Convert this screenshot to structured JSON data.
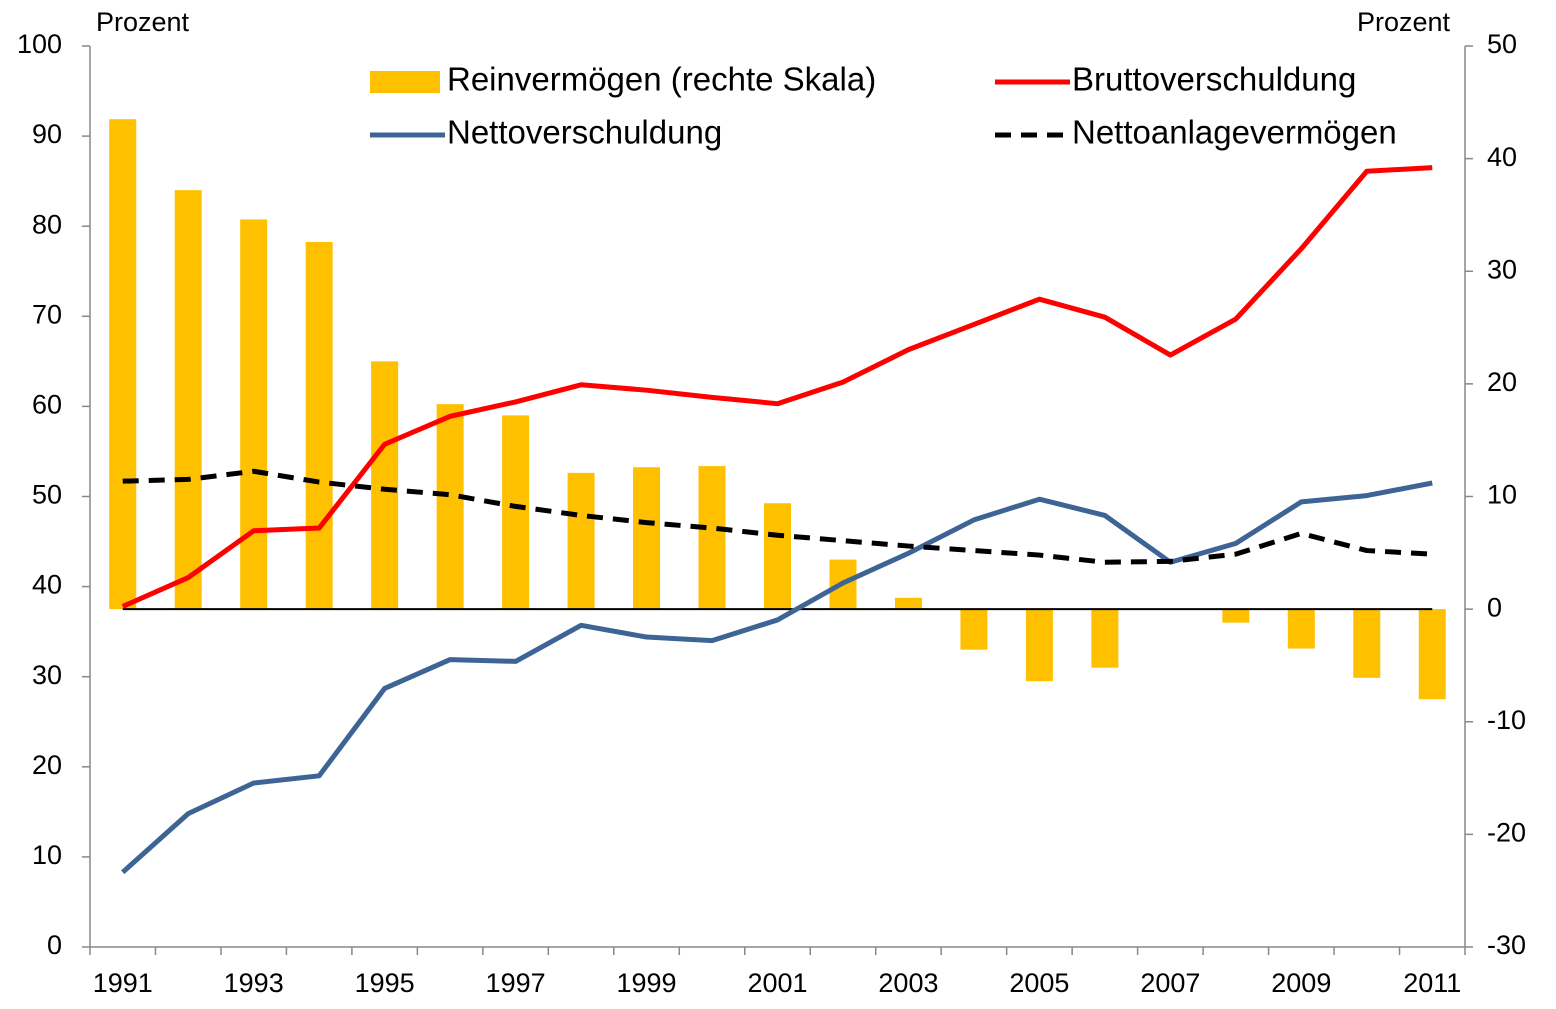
{
  "chart_data": {
    "type": "bar_line",
    "y_label": "Prozent",
    "y2_label": "Prozent",
    "categories": [
      "1991",
      null,
      "1993",
      null,
      "1995",
      null,
      "1997",
      null,
      "1999",
      null,
      "2001",
      null,
      "2003",
      null,
      "2005",
      null,
      "2007",
      null,
      "2009",
      null,
      "2011"
    ],
    "series": [
      {
        "name": "Reinvermögen (rechte Skala)",
        "type": "bar",
        "axis": "y2",
        "color": "#ffc000",
        "values": [
          43.5,
          37.2,
          34.6,
          32.6,
          22.0,
          18.2,
          17.2,
          12.1,
          12.6,
          12.7,
          9.4,
          4.4,
          1.0,
          -3.6,
          -6.4,
          -5.2,
          0,
          -1.2,
          -3.5,
          -6.1,
          -8.0
        ]
      },
      {
        "name": "Bruttoverschuldung",
        "type": "line",
        "color": "#ff0000",
        "dashed": false,
        "values": [
          37.8,
          41.0,
          46.2,
          46.5,
          55.8,
          58.9,
          60.5,
          62.4,
          61.8,
          61.0,
          60.3,
          62.7,
          66.3,
          69.1,
          71.9,
          69.9,
          65.7,
          69.7,
          77.5,
          86.1,
          86.5
        ]
      },
      {
        "name": "Nettoverschuldung",
        "type": "line",
        "color": "#3d6494",
        "dashed": false,
        "values": [
          8.3,
          14.8,
          18.2,
          19.0,
          28.7,
          31.9,
          31.7,
          35.7,
          34.4,
          34.0,
          36.3,
          40.4,
          43.7,
          47.4,
          49.7,
          47.9,
          42.7,
          44.8,
          49.4,
          50.1,
          51.5
        ]
      },
      {
        "name": "Nettoanlagevermögen",
        "type": "line",
        "color": "#000000",
        "dashed": true,
        "values": [
          51.7,
          51.9,
          52.8,
          51.6,
          50.8,
          50.2,
          48.9,
          47.9,
          47.1,
          46.5,
          45.7,
          45.1,
          44.5,
          44.0,
          43.5,
          42.7,
          42.8,
          43.6,
          45.9,
          44.0,
          43.6
        ]
      }
    ],
    "ylim": [
      0,
      100
    ],
    "yticks": [
      0,
      10,
      20,
      30,
      40,
      50,
      60,
      70,
      80,
      90,
      100
    ],
    "y2lim": [
      -30,
      50
    ],
    "y2ticks": [
      -30,
      -20,
      -10,
      0,
      10,
      20,
      30,
      40,
      50
    ]
  }
}
